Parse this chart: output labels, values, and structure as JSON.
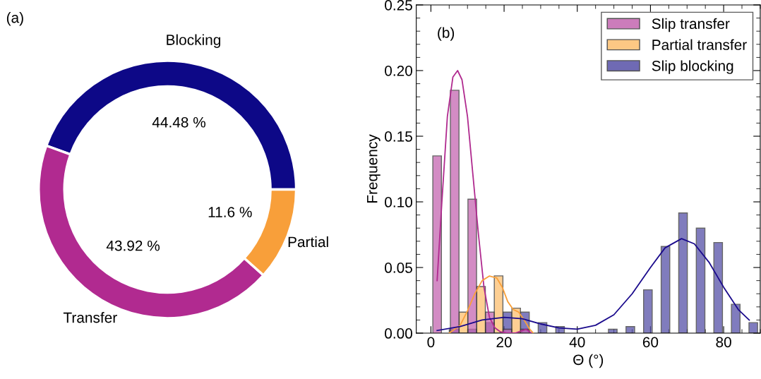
{
  "chart_data": [
    {
      "type": "donut",
      "annotations": [
        "(a)"
      ],
      "categories": [
        "Blocking",
        "Transfer",
        "Partial"
      ],
      "values": [
        44.48,
        43.92,
        11.6
      ],
      "value_labels": [
        "44.48 %",
        "43.92 %",
        "11.6 %"
      ],
      "colors": [
        "#0d0887",
        "#b12a90",
        "#f89f3a"
      ]
    },
    {
      "type": "bar",
      "annotations": [
        "(b)"
      ],
      "xlabel": "Θ (°)",
      "ylabel": "Frequency",
      "xlim": [
        -4,
        90
      ],
      "xticks": [
        0,
        20,
        40,
        60,
        80
      ],
      "ylim": [
        0,
        0.25
      ],
      "yticks": [
        {
          "value": 0,
          "label": "0.00"
        },
        {
          "value": 0.05,
          "label": "0.05"
        },
        {
          "value": 0.1,
          "label": "0.10"
        },
        {
          "value": 0.15,
          "label": "0.15"
        },
        {
          "value": 0.2,
          "label": "0.20"
        },
        {
          "value": 0.25,
          "label": "0.25"
        }
      ],
      "legend": "top right",
      "grid": false,
      "series": [
        {
          "name": "Slip transfer",
          "color": "#c466b0",
          "x": [
            1.7,
            6.5,
            11.3,
            16.1,
            20.9,
            25.7
          ],
          "values": [
            0.135,
            0.185,
            0.102,
            0.016,
            0.003,
            0.003
          ]
        },
        {
          "name": "Partial transfer",
          "color": "#fdbf6f",
          "x": [
            8.9,
            13.7,
            18.5,
            23.3
          ],
          "values": [
            0.016,
            0.0355,
            0.0436,
            0.019
          ]
        },
        {
          "name": "Slip blocking",
          "color": "#5651a8",
          "x": [
            6.5,
            11.3,
            16.1,
            20.9,
            25.7,
            30.5,
            35.3,
            49.7,
            54.5,
            59.3,
            64.1,
            68.9,
            73.7,
            78.5,
            83.3,
            88.1
          ],
          "values": [
            0.003,
            0.003,
            0.008,
            0.016,
            0.016,
            0.008,
            0.005,
            0.003,
            0.005,
            0.033,
            0.066,
            0.0915,
            0.08,
            0.069,
            0.022,
            0.008
          ]
        },
        {
          "type": "line",
          "color": "#b02a8f",
          "x": [
            1.7,
            3,
            4.5,
            6,
            7.3,
            8.5,
            10,
            11.5,
            13,
            14.5,
            16,
            17.5,
            19,
            21,
            23,
            25,
            26,
            27.5
          ],
          "values": [
            0.04,
            0.1,
            0.165,
            0.195,
            0.2,
            0.193,
            0.165,
            0.12,
            0.075,
            0.035,
            0.012,
            0.004,
            0.001,
            0.0,
            0.0,
            0.002,
            0.003,
            0.0
          ]
        },
        {
          "type": "line",
          "color": "#f9a03a",
          "x": [
            5,
            8,
            10,
            12,
            14,
            16,
            18,
            19.5,
            21,
            22.5,
            24,
            25.5,
            27,
            28
          ],
          "values": [
            0.0,
            0.006,
            0.017,
            0.03,
            0.04,
            0.0435,
            0.042,
            0.035,
            0.024,
            0.018,
            0.016,
            0.01,
            0.003,
            0.0
          ]
        },
        {
          "type": "line",
          "color": "#1a0a8c",
          "x": [
            1.7,
            8,
            14,
            20,
            25,
            30,
            35,
            40,
            45,
            50,
            55,
            60,
            64,
            68.5,
            72,
            76,
            80,
            84,
            87
          ],
          "values": [
            0.002,
            0.005,
            0.01,
            0.012,
            0.011,
            0.007,
            0.004,
            0.003,
            0.006,
            0.014,
            0.03,
            0.05,
            0.065,
            0.072,
            0.068,
            0.054,
            0.035,
            0.018,
            0.01
          ]
        }
      ]
    }
  ]
}
